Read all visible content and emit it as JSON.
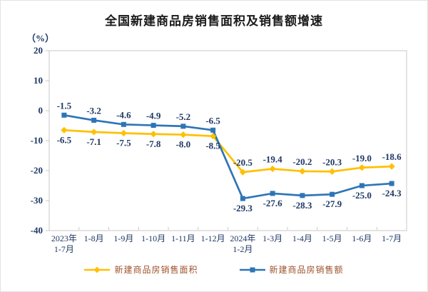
{
  "page": {
    "background": "#ffffff",
    "frame_border": "#e3e3e3"
  },
  "chart": {
    "title": "全国新建商品房销售面积及销售额增速",
    "unit_label": "（%）"
  },
  "chart_data": {
    "type": "line",
    "title": "全国新建商品房销售面积及销售额增速",
    "ylabel": "（%）",
    "ylim": [
      -40,
      20
    ],
    "yticks": [
      20,
      10,
      0,
      -10,
      -20,
      -30,
      -40
    ],
    "grid": false,
    "legend_position": "bottom",
    "categories": [
      [
        "2023年",
        "1-7月"
      ],
      [
        "1-8月"
      ],
      [
        "1-9月"
      ],
      [
        "1-10月"
      ],
      [
        "1-11月"
      ],
      [
        "1-12月"
      ],
      [
        "2024年",
        "1-2月"
      ],
      [
        "1-3月"
      ],
      [
        "1-4月"
      ],
      [
        "1-5月"
      ],
      [
        "1-6月"
      ],
      [
        "1-7月"
      ]
    ],
    "series": [
      {
        "name": "新建商品房销售面积",
        "color": "#FFC000",
        "marker": "diamond",
        "values": [
          -6.5,
          -7.1,
          -7.5,
          -7.8,
          -8.0,
          -8.5,
          -20.5,
          -19.4,
          -20.2,
          -20.3,
          -19.0,
          -18.6
        ],
        "label_sides": [
          "below",
          "below",
          "below",
          "below",
          "below",
          "below",
          "above",
          "above",
          "above",
          "above",
          "above",
          "above"
        ]
      },
      {
        "name": "新建商品房销售额",
        "color": "#2E75B6",
        "marker": "square",
        "values": [
          -1.5,
          -3.2,
          -4.6,
          -4.9,
          -5.2,
          -6.5,
          -29.3,
          -27.6,
          -28.3,
          -27.9,
          -25.0,
          -24.3
        ],
        "label_sides": [
          "above",
          "above",
          "above",
          "above",
          "above",
          "above",
          "below",
          "below",
          "below",
          "below",
          "below",
          "below"
        ]
      }
    ],
    "label_decimals": 1,
    "label_color": "#1F3864",
    "axis_label_color": "#1F3864",
    "axis_line_color": "#C9C9C9"
  },
  "legend": {
    "text_color": "#A0522D"
  }
}
